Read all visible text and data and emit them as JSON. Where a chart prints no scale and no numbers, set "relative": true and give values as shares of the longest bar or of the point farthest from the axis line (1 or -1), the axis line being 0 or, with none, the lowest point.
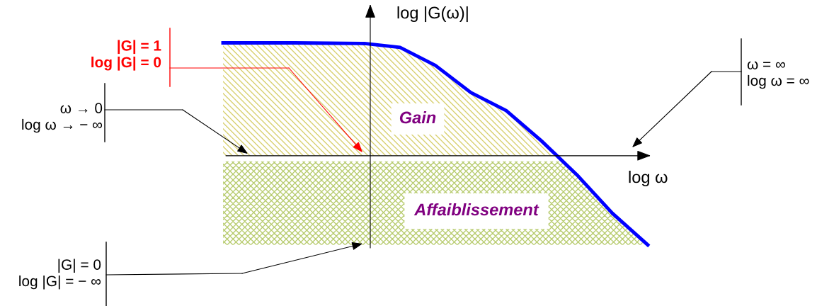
{
  "chart_data": {
    "type": "line",
    "relative": true,
    "xlabel": "log ω",
    "ylabel": "log |G(ω)|",
    "categories": [
      null,
      null,
      null,
      null,
      null,
      null,
      null,
      null,
      null,
      null,
      null,
      null,
      null
    ],
    "series": [
      {
        "color": "#0000ff",
        "values": [
          1.0,
          1.0,
          1.0,
          0.997,
          0.994,
          0.96,
          0.8,
          0.56,
          0.4,
          0.13,
          -0.17,
          -0.51,
          -0.79
        ]
      }
    ],
    "bands": [
      {
        "axis": "y",
        "from": 0,
        "to": 1.0,
        "label": "Gain",
        "color": "#d8d070"
      },
      {
        "axis": "y",
        "from": -0.79,
        "to": -0.05,
        "label": "Affaiblissement",
        "color": "#b8cc70"
      }
    ],
    "annotations": [
      "|G| = 1\nlog |G| = 0",
      "ω → 0\nlog ω → − ∞",
      "ω = ∞\nlog ω = ∞",
      "|G| = 0\nlog |G| = − ∞"
    ],
    "grid": false,
    "legend": false,
    "marker": "none",
    "line_style": "solid"
  }
}
